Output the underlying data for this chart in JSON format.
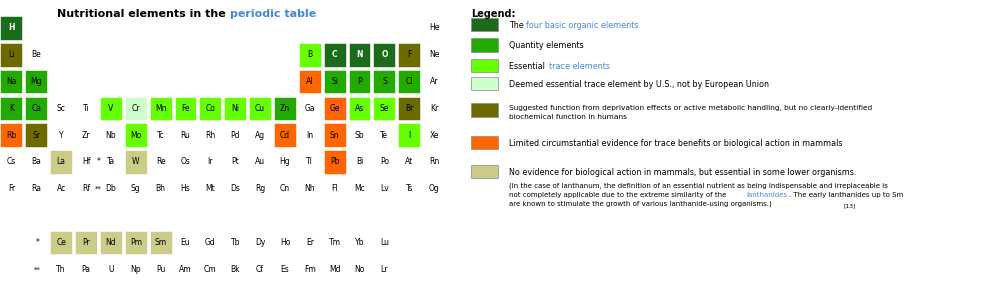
{
  "title_plain": "Nutritional elements in the ",
  "title_blue": "periodic table",
  "bg_color": "#ffffff",
  "colors": {
    "dark_green": "#1a6b1a",
    "medium_green": "#22aa00",
    "light_green": "#66ff00",
    "pale_green": "#ccffcc",
    "olive": "#6b6b00",
    "orange": "#ff6600",
    "tan": "#cccc88"
  },
  "elements": [
    {
      "symbol": "H",
      "row": 1,
      "col": 1,
      "color": "dark_green",
      "text_color": "white"
    },
    {
      "symbol": "He",
      "row": 1,
      "col": 18,
      "color": null,
      "text_color": "black"
    },
    {
      "symbol": "Li",
      "row": 2,
      "col": 1,
      "color": "olive",
      "text_color": "black"
    },
    {
      "symbol": "Be",
      "row": 2,
      "col": 2,
      "color": null,
      "text_color": "black"
    },
    {
      "symbol": "B",
      "row": 2,
      "col": 13,
      "color": "light_green",
      "text_color": "black"
    },
    {
      "symbol": "C",
      "row": 2,
      "col": 14,
      "color": "dark_green",
      "text_color": "white"
    },
    {
      "symbol": "N",
      "row": 2,
      "col": 15,
      "color": "dark_green",
      "text_color": "white"
    },
    {
      "symbol": "O",
      "row": 2,
      "col": 16,
      "color": "dark_green",
      "text_color": "white"
    },
    {
      "symbol": "F",
      "row": 2,
      "col": 17,
      "color": "olive",
      "text_color": "black"
    },
    {
      "symbol": "Ne",
      "row": 2,
      "col": 18,
      "color": null,
      "text_color": "black"
    },
    {
      "symbol": "Na",
      "row": 3,
      "col": 1,
      "color": "medium_green",
      "text_color": "black"
    },
    {
      "symbol": "Mg",
      "row": 3,
      "col": 2,
      "color": "medium_green",
      "text_color": "black"
    },
    {
      "symbol": "Al",
      "row": 3,
      "col": 13,
      "color": "orange",
      "text_color": "black"
    },
    {
      "symbol": "Si",
      "row": 3,
      "col": 14,
      "color": "medium_green",
      "text_color": "black"
    },
    {
      "symbol": "P",
      "row": 3,
      "col": 15,
      "color": "medium_green",
      "text_color": "black"
    },
    {
      "symbol": "S",
      "row": 3,
      "col": 16,
      "color": "medium_green",
      "text_color": "black"
    },
    {
      "symbol": "Cl",
      "row": 3,
      "col": 17,
      "color": "medium_green",
      "text_color": "black"
    },
    {
      "symbol": "Ar",
      "row": 3,
      "col": 18,
      "color": null,
      "text_color": "black"
    },
    {
      "symbol": "K",
      "row": 4,
      "col": 1,
      "color": "medium_green",
      "text_color": "black"
    },
    {
      "symbol": "Ca",
      "row": 4,
      "col": 2,
      "color": "medium_green",
      "text_color": "black"
    },
    {
      "symbol": "Sc",
      "row": 4,
      "col": 3,
      "color": null,
      "text_color": "black"
    },
    {
      "symbol": "Ti",
      "row": 4,
      "col": 4,
      "color": null,
      "text_color": "black"
    },
    {
      "symbol": "V",
      "row": 4,
      "col": 5,
      "color": "light_green",
      "text_color": "black"
    },
    {
      "symbol": "Cr",
      "row": 4,
      "col": 6,
      "color": "pale_green",
      "text_color": "black"
    },
    {
      "symbol": "Mn",
      "row": 4,
      "col": 7,
      "color": "light_green",
      "text_color": "black"
    },
    {
      "symbol": "Fe",
      "row": 4,
      "col": 8,
      "color": "light_green",
      "text_color": "black"
    },
    {
      "symbol": "Co",
      "row": 4,
      "col": 9,
      "color": "light_green",
      "text_color": "black"
    },
    {
      "symbol": "Ni",
      "row": 4,
      "col": 10,
      "color": "light_green",
      "text_color": "black"
    },
    {
      "symbol": "Cu",
      "row": 4,
      "col": 11,
      "color": "light_green",
      "text_color": "black"
    },
    {
      "symbol": "Zn",
      "row": 4,
      "col": 12,
      "color": "medium_green",
      "text_color": "black"
    },
    {
      "symbol": "Ga",
      "row": 4,
      "col": 13,
      "color": null,
      "text_color": "black"
    },
    {
      "symbol": "Ge",
      "row": 4,
      "col": 14,
      "color": "orange",
      "text_color": "black"
    },
    {
      "symbol": "As",
      "row": 4,
      "col": 15,
      "color": "light_green",
      "text_color": "black"
    },
    {
      "symbol": "Se",
      "row": 4,
      "col": 16,
      "color": "light_green",
      "text_color": "black"
    },
    {
      "symbol": "Br",
      "row": 4,
      "col": 17,
      "color": "olive",
      "text_color": "black"
    },
    {
      "symbol": "Kr",
      "row": 4,
      "col": 18,
      "color": null,
      "text_color": "black"
    },
    {
      "symbol": "Rb",
      "row": 5,
      "col": 1,
      "color": "orange",
      "text_color": "black"
    },
    {
      "symbol": "Sr",
      "row": 5,
      "col": 2,
      "color": "olive",
      "text_color": "black"
    },
    {
      "symbol": "Y",
      "row": 5,
      "col": 3,
      "color": null,
      "text_color": "black"
    },
    {
      "symbol": "Zr",
      "row": 5,
      "col": 4,
      "color": null,
      "text_color": "black"
    },
    {
      "symbol": "Nb",
      "row": 5,
      "col": 5,
      "color": null,
      "text_color": "black"
    },
    {
      "symbol": "Mo",
      "row": 5,
      "col": 6,
      "color": "light_green",
      "text_color": "black"
    },
    {
      "symbol": "Tc",
      "row": 5,
      "col": 7,
      "color": null,
      "text_color": "black"
    },
    {
      "symbol": "Ru",
      "row": 5,
      "col": 8,
      "color": null,
      "text_color": "black"
    },
    {
      "symbol": "Rh",
      "row": 5,
      "col": 9,
      "color": null,
      "text_color": "black"
    },
    {
      "symbol": "Pd",
      "row": 5,
      "col": 10,
      "color": null,
      "text_color": "black"
    },
    {
      "symbol": "Ag",
      "row": 5,
      "col": 11,
      "color": null,
      "text_color": "black"
    },
    {
      "symbol": "Cd",
      "row": 5,
      "col": 12,
      "color": "orange",
      "text_color": "black"
    },
    {
      "symbol": "In",
      "row": 5,
      "col": 13,
      "color": null,
      "text_color": "black"
    },
    {
      "symbol": "Sn",
      "row": 5,
      "col": 14,
      "color": "orange",
      "text_color": "black"
    },
    {
      "symbol": "Sb",
      "row": 5,
      "col": 15,
      "color": null,
      "text_color": "black"
    },
    {
      "symbol": "Te",
      "row": 5,
      "col": 16,
      "color": null,
      "text_color": "black"
    },
    {
      "symbol": "I",
      "row": 5,
      "col": 17,
      "color": "light_green",
      "text_color": "black"
    },
    {
      "symbol": "Xe",
      "row": 5,
      "col": 18,
      "color": null,
      "text_color": "black"
    },
    {
      "symbol": "Cs",
      "row": 6,
      "col": 1,
      "color": null,
      "text_color": "black"
    },
    {
      "symbol": "Ba",
      "row": 6,
      "col": 2,
      "color": null,
      "text_color": "black"
    },
    {
      "symbol": "La",
      "row": 6,
      "col": 3,
      "color": "tan",
      "text_color": "black"
    },
    {
      "symbol": "Hf",
      "row": 6,
      "col": 4,
      "color": null,
      "text_color": "black"
    },
    {
      "symbol": "Ta",
      "row": 6,
      "col": 5,
      "color": null,
      "text_color": "black"
    },
    {
      "symbol": "W",
      "row": 6,
      "col": 6,
      "color": "tan",
      "text_color": "black"
    },
    {
      "symbol": "Re",
      "row": 6,
      "col": 7,
      "color": null,
      "text_color": "black"
    },
    {
      "symbol": "Os",
      "row": 6,
      "col": 8,
      "color": null,
      "text_color": "black"
    },
    {
      "symbol": "Ir",
      "row": 6,
      "col": 9,
      "color": null,
      "text_color": "black"
    },
    {
      "symbol": "Pt",
      "row": 6,
      "col": 10,
      "color": null,
      "text_color": "black"
    },
    {
      "symbol": "Au",
      "row": 6,
      "col": 11,
      "color": null,
      "text_color": "black"
    },
    {
      "symbol": "Hg",
      "row": 6,
      "col": 12,
      "color": null,
      "text_color": "black"
    },
    {
      "symbol": "Tl",
      "row": 6,
      "col": 13,
      "color": null,
      "text_color": "black"
    },
    {
      "symbol": "Pb",
      "row": 6,
      "col": 14,
      "color": "orange",
      "text_color": "black"
    },
    {
      "symbol": "Bi",
      "row": 6,
      "col": 15,
      "color": null,
      "text_color": "black"
    },
    {
      "symbol": "Po",
      "row": 6,
      "col": 16,
      "color": null,
      "text_color": "black"
    },
    {
      "symbol": "At",
      "row": 6,
      "col": 17,
      "color": null,
      "text_color": "black"
    },
    {
      "symbol": "Rn",
      "row": 6,
      "col": 18,
      "color": null,
      "text_color": "black"
    },
    {
      "symbol": "Fr",
      "row": 7,
      "col": 1,
      "color": null,
      "text_color": "black"
    },
    {
      "symbol": "Ra",
      "row": 7,
      "col": 2,
      "color": null,
      "text_color": "black"
    },
    {
      "symbol": "Ac",
      "row": 7,
      "col": 3,
      "color": null,
      "text_color": "black"
    },
    {
      "symbol": "Rf",
      "row": 7,
      "col": 4,
      "color": null,
      "text_color": "black"
    },
    {
      "symbol": "Db",
      "row": 7,
      "col": 5,
      "color": null,
      "text_color": "black"
    },
    {
      "symbol": "Sg",
      "row": 7,
      "col": 6,
      "color": null,
      "text_color": "black"
    },
    {
      "symbol": "Bh",
      "row": 7,
      "col": 7,
      "color": null,
      "text_color": "black"
    },
    {
      "symbol": "Hs",
      "row": 7,
      "col": 8,
      "color": null,
      "text_color": "black"
    },
    {
      "symbol": "Mt",
      "row": 7,
      "col": 9,
      "color": null,
      "text_color": "black"
    },
    {
      "symbol": "Ds",
      "row": 7,
      "col": 10,
      "color": null,
      "text_color": "black"
    },
    {
      "symbol": "Rg",
      "row": 7,
      "col": 11,
      "color": null,
      "text_color": "black"
    },
    {
      "symbol": "Cn",
      "row": 7,
      "col": 12,
      "color": null,
      "text_color": "black"
    },
    {
      "symbol": "Nh",
      "row": 7,
      "col": 13,
      "color": null,
      "text_color": "black"
    },
    {
      "symbol": "Fl",
      "row": 7,
      "col": 14,
      "color": null,
      "text_color": "black"
    },
    {
      "symbol": "Mc",
      "row": 7,
      "col": 15,
      "color": null,
      "text_color": "black"
    },
    {
      "symbol": "Lv",
      "row": 7,
      "col": 16,
      "color": null,
      "text_color": "black"
    },
    {
      "symbol": "Ts",
      "row": 7,
      "col": 17,
      "color": null,
      "text_color": "black"
    },
    {
      "symbol": "Og",
      "row": 7,
      "col": 18,
      "color": null,
      "text_color": "black"
    }
  ],
  "lanthanides": [
    "Ce",
    "Pr",
    "Nd",
    "Pm",
    "Sm",
    "Eu",
    "Gd",
    "Tb",
    "Dy",
    "Ho",
    "Er",
    "Tm",
    "Yb",
    "Lu"
  ],
  "lanthanide_colors": [
    "tan",
    "tan",
    "tan",
    "tan",
    "tan",
    null,
    null,
    null,
    null,
    null,
    null,
    null,
    null,
    null
  ],
  "actinides": [
    "Th",
    "Pa",
    "U",
    "Np",
    "Pu",
    "Am",
    "Cm",
    "Bk",
    "Cf",
    "Es",
    "Fm",
    "Md",
    "No",
    "Lr"
  ],
  "actinide_colors": [
    null,
    null,
    null,
    null,
    null,
    null,
    null,
    null,
    null,
    null,
    null,
    null,
    null,
    null
  ],
  "legend_items": [
    {
      "color": "#1a6b1a",
      "text": "The ",
      "blue": "four basic organic elements",
      "extra": ""
    },
    {
      "color": "#22aa00",
      "text": "Quantity elements",
      "blue": "",
      "extra": ""
    },
    {
      "color": "#66ff00",
      "text": "Essential ",
      "blue": "trace elements",
      "extra": ""
    },
    {
      "color": "#ccffcc",
      "text": "Deemed essential trace element by U.S., not by European Union",
      "blue": "",
      "extra": ""
    },
    {
      "color": "#6b6b00",
      "text": "Suggested function from deprivation effects or active metabolic handling, but no clearly-identified biochemical function in humans",
      "blue": "",
      "extra": ""
    },
    {
      "color": "#ff6600",
      "text": "Limited circumstantial evidence for trace benefits or biological action in mammals",
      "blue": "",
      "extra": ""
    },
    {
      "color": "#cccc88",
      "text": "No evidence for biological action in mammals, but essential in some lower organisms.",
      "blue": "",
      "extra": "(In the case of lanthanum, the definition of an essential nutrient as being indispensable and irreplaceable is not completely applicable due to the extreme similarity of the lanthanides. The early lanthanides up to Sm are known to stimulate the growth of various lanthanide-using organisms.)[13]"
    }
  ]
}
